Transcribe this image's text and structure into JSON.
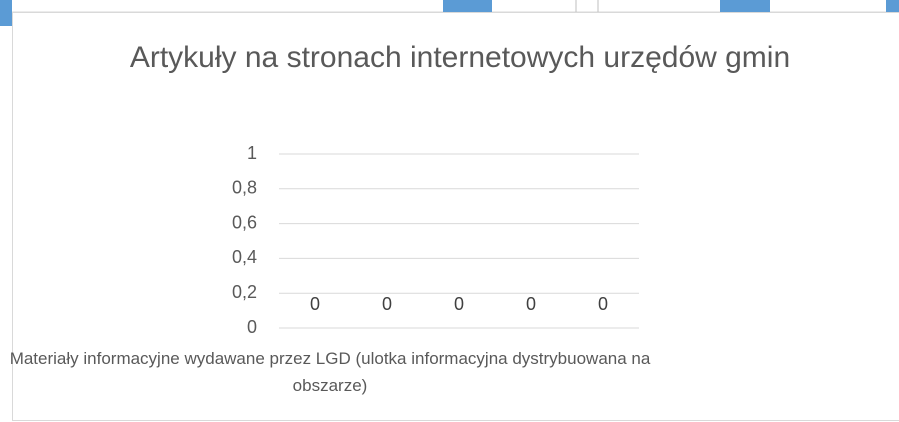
{
  "chart_data": {
    "type": "bar",
    "title": "Artykuły na stronach internetowych urzędów gmin",
    "x_label": "Materiały informacyjne wydawane przez LGD (ulotka informacyjna dystrybuowana na obszarze)",
    "categories": [
      null,
      null,
      null,
      null,
      null
    ],
    "values": [
      0,
      0,
      0,
      0,
      0
    ],
    "color": "#5b9bd5",
    "ylim": [
      0,
      1
    ],
    "yticks": [
      0,
      {
        "value": 0.2,
        "label": "0,2"
      },
      {
        "value": 0.4,
        "label": "0,4"
      },
      {
        "value": 0.6,
        "label": "0,6"
      },
      {
        "value": 0.8,
        "label": "0,8"
      },
      1
    ],
    "grid": true
  }
}
